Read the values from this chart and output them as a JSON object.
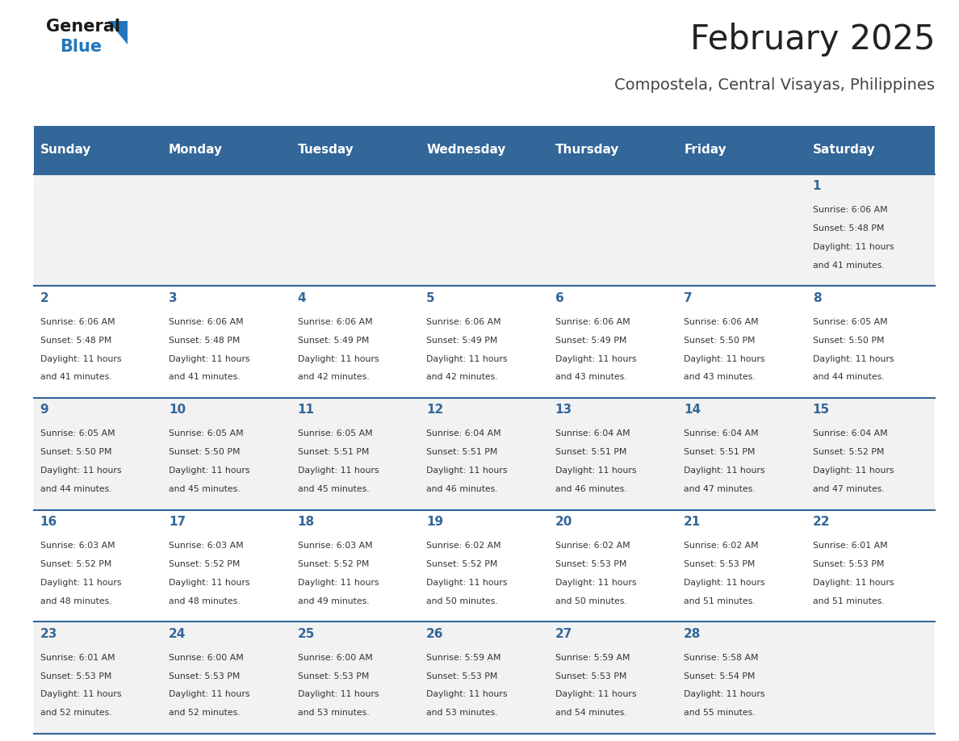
{
  "title": "February 2025",
  "subtitle": "Compostela, Central Visayas, Philippines",
  "days_of_week": [
    "Sunday",
    "Monday",
    "Tuesday",
    "Wednesday",
    "Thursday",
    "Friday",
    "Saturday"
  ],
  "header_bg": "#336699",
  "header_text": "#ffffff",
  "row_bg_even": "#f2f2f2",
  "row_bg_odd": "#ffffff",
  "separator_color": "#336699",
  "day_number_color": "#336699",
  "text_color": "#333333",
  "title_color": "#222222",
  "subtitle_color": "#444444",
  "calendar": [
    [
      null,
      null,
      null,
      null,
      null,
      null,
      {
        "day": 1,
        "sunrise": "6:06 AM",
        "sunset": "5:48 PM",
        "daylight": "11 hours and 41 minutes"
      }
    ],
    [
      {
        "day": 2,
        "sunrise": "6:06 AM",
        "sunset": "5:48 PM",
        "daylight": "11 hours and 41 minutes"
      },
      {
        "day": 3,
        "sunrise": "6:06 AM",
        "sunset": "5:48 PM",
        "daylight": "11 hours and 41 minutes"
      },
      {
        "day": 4,
        "sunrise": "6:06 AM",
        "sunset": "5:49 PM",
        "daylight": "11 hours and 42 minutes"
      },
      {
        "day": 5,
        "sunrise": "6:06 AM",
        "sunset": "5:49 PM",
        "daylight": "11 hours and 42 minutes"
      },
      {
        "day": 6,
        "sunrise": "6:06 AM",
        "sunset": "5:49 PM",
        "daylight": "11 hours and 43 minutes"
      },
      {
        "day": 7,
        "sunrise": "6:06 AM",
        "sunset": "5:50 PM",
        "daylight": "11 hours and 43 minutes"
      },
      {
        "day": 8,
        "sunrise": "6:05 AM",
        "sunset": "5:50 PM",
        "daylight": "11 hours and 44 minutes"
      }
    ],
    [
      {
        "day": 9,
        "sunrise": "6:05 AM",
        "sunset": "5:50 PM",
        "daylight": "11 hours and 44 minutes"
      },
      {
        "day": 10,
        "sunrise": "6:05 AM",
        "sunset": "5:50 PM",
        "daylight": "11 hours and 45 minutes"
      },
      {
        "day": 11,
        "sunrise": "6:05 AM",
        "sunset": "5:51 PM",
        "daylight": "11 hours and 45 minutes"
      },
      {
        "day": 12,
        "sunrise": "6:04 AM",
        "sunset": "5:51 PM",
        "daylight": "11 hours and 46 minutes"
      },
      {
        "day": 13,
        "sunrise": "6:04 AM",
        "sunset": "5:51 PM",
        "daylight": "11 hours and 46 minutes"
      },
      {
        "day": 14,
        "sunrise": "6:04 AM",
        "sunset": "5:51 PM",
        "daylight": "11 hours and 47 minutes"
      },
      {
        "day": 15,
        "sunrise": "6:04 AM",
        "sunset": "5:52 PM",
        "daylight": "11 hours and 47 minutes"
      }
    ],
    [
      {
        "day": 16,
        "sunrise": "6:03 AM",
        "sunset": "5:52 PM",
        "daylight": "11 hours and 48 minutes"
      },
      {
        "day": 17,
        "sunrise": "6:03 AM",
        "sunset": "5:52 PM",
        "daylight": "11 hours and 48 minutes"
      },
      {
        "day": 18,
        "sunrise": "6:03 AM",
        "sunset": "5:52 PM",
        "daylight": "11 hours and 49 minutes"
      },
      {
        "day": 19,
        "sunrise": "6:02 AM",
        "sunset": "5:52 PM",
        "daylight": "11 hours and 50 minutes"
      },
      {
        "day": 20,
        "sunrise": "6:02 AM",
        "sunset": "5:53 PM",
        "daylight": "11 hours and 50 minutes"
      },
      {
        "day": 21,
        "sunrise": "6:02 AM",
        "sunset": "5:53 PM",
        "daylight": "11 hours and 51 minutes"
      },
      {
        "day": 22,
        "sunrise": "6:01 AM",
        "sunset": "5:53 PM",
        "daylight": "11 hours and 51 minutes"
      }
    ],
    [
      {
        "day": 23,
        "sunrise": "6:01 AM",
        "sunset": "5:53 PM",
        "daylight": "11 hours and 52 minutes"
      },
      {
        "day": 24,
        "sunrise": "6:00 AM",
        "sunset": "5:53 PM",
        "daylight": "11 hours and 52 minutes"
      },
      {
        "day": 25,
        "sunrise": "6:00 AM",
        "sunset": "5:53 PM",
        "daylight": "11 hours and 53 minutes"
      },
      {
        "day": 26,
        "sunrise": "5:59 AM",
        "sunset": "5:53 PM",
        "daylight": "11 hours and 53 minutes"
      },
      {
        "day": 27,
        "sunrise": "5:59 AM",
        "sunset": "5:53 PM",
        "daylight": "11 hours and 54 minutes"
      },
      {
        "day": 28,
        "sunrise": "5:58 AM",
        "sunset": "5:54 PM",
        "daylight": "11 hours and 55 minutes"
      },
      null
    ]
  ],
  "fig_width": 11.88,
  "fig_height": 9.18,
  "dpi": 100
}
